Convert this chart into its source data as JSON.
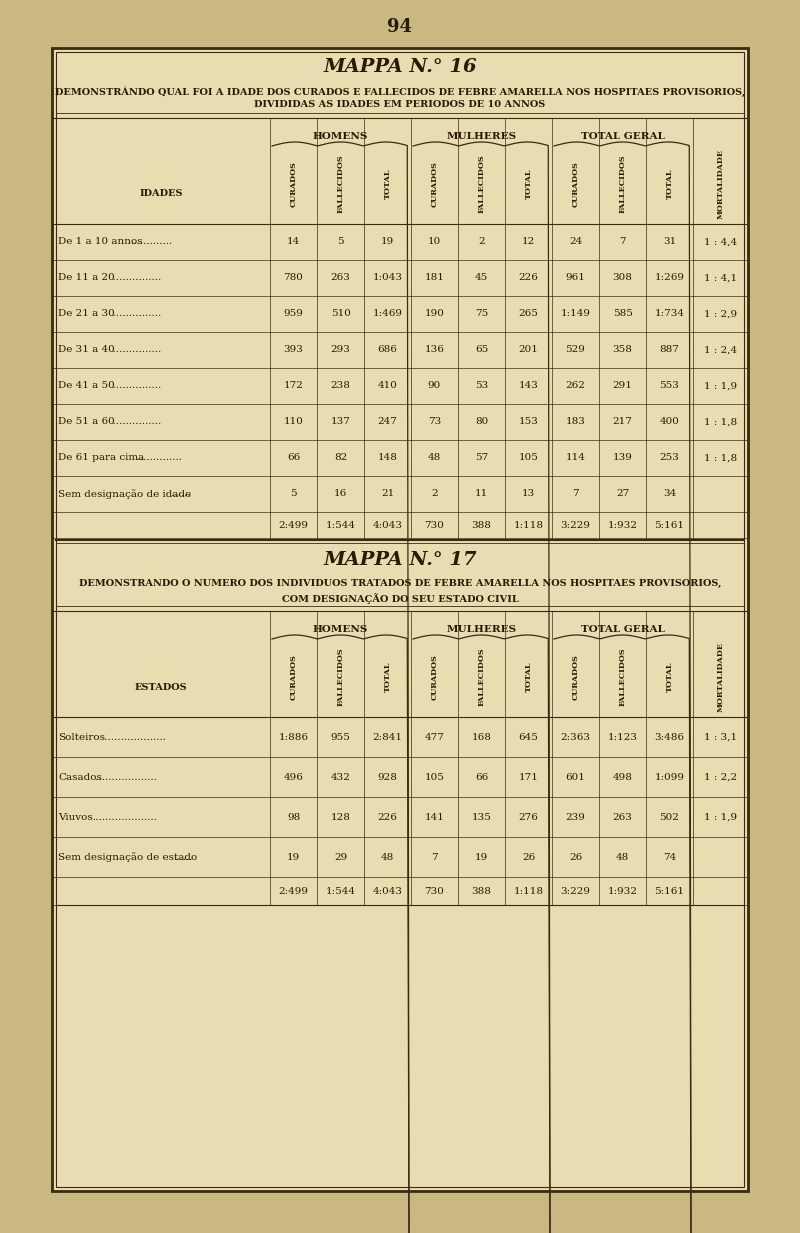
{
  "page_number": "94",
  "bg_color": "#c8b882",
  "paper_color": "#e8ddb0",
  "border_color": "#3a2a10",
  "text_color": "#2a1a00",
  "mappa16_title": "MAPPA N.° 16",
  "mappa16_subtitle1": "DEMONSTRÁNDO QUAL FOI A IDADE DOS CURADOS E FALLECIDOS DE FEBRE AMARELLA NOS HOSPITAES PROVISORIOS,",
  "mappa16_subtitle2": "DIVIDIDAS AS IDADES EM PERIODOS DE 10 ANNOS",
  "mappa16_row_label": "IDADES",
  "mappa16_rows": [
    {
      "label": "De 1 a 10 annos",
      "dots": ".............",
      "h_cur": "14",
      "h_fal": "5",
      "h_tot": "19",
      "m_cur": "10",
      "m_fal": "2",
      "m_tot": "12",
      "t_cur": "24",
      "t_fal": "7",
      "t_tot": "31",
      "mort": "1 : 4,4"
    },
    {
      "label": "De 11 a 20",
      "dots": "  ...............",
      "h_cur": "780",
      "h_fal": "263",
      "h_tot": "1:043",
      "m_cur": "181",
      "m_fal": "45",
      "m_tot": "226",
      "t_cur": "961",
      "t_fal": "308",
      "t_tot": "1:269",
      "mort": "1 : 4,1"
    },
    {
      "label": "De 21 a 30",
      "dots": "  ...............",
      "h_cur": "959",
      "h_fal": "510",
      "h_tot": "1:469",
      "m_cur": "190",
      "m_fal": "75",
      "m_tot": "265",
      "t_cur": "1:149",
      "t_fal": "585",
      "t_tot": "1:734",
      "mort": "1 : 2,9"
    },
    {
      "label": "De 31 a 40",
      "dots": "  ...............",
      "h_cur": "393",
      "h_fal": "293",
      "h_tot": "686",
      "m_cur": "136",
      "m_fal": "65",
      "m_tot": "201",
      "t_cur": "529",
      "t_fal": "358",
      "t_tot": "887",
      "mort": "1 : 2,4"
    },
    {
      "label": "De 41 a 50",
      "dots": "  ...............",
      "h_cur": "172",
      "h_fal": "238",
      "h_tot": "410",
      "m_cur": "90",
      "m_fal": "53",
      "m_tot": "143",
      "t_cur": "262",
      "t_fal": "291",
      "t_tot": "553",
      "mort": "1 : 1,9"
    },
    {
      "label": "De 51 a 60",
      "dots": "  ...............",
      "h_cur": "110",
      "h_fal": "137",
      "h_tot": "247",
      "m_cur": "73",
      "m_fal": "80",
      "m_tot": "153",
      "t_cur": "183",
      "t_fal": "217",
      "t_tot": "400",
      "mort": "1 : 1,8"
    },
    {
      "label": "De 61 para cima",
      "dots": "  ..............",
      "h_cur": "66",
      "h_fal": "82",
      "h_tot": "148",
      "m_cur": "48",
      "m_fal": "57",
      "m_tot": "105",
      "t_cur": "114",
      "t_fal": "139",
      "t_tot": "253",
      "mort": "1 : 1,8"
    },
    {
      "label": "Sem designação de idade",
      "dots": " ......",
      "h_cur": "5",
      "h_fal": "16",
      "h_tot": "21",
      "m_cur": "2",
      "m_fal": "11",
      "m_tot": "13",
      "t_cur": "7",
      "t_fal": "27",
      "t_tot": "34",
      "mort": ""
    },
    {
      "label": "",
      "dots": "",
      "h_cur": "2:499",
      "h_fal": "1:544",
      "h_tot": "4:043",
      "m_cur": "730",
      "m_fal": "388",
      "m_tot": "1:118",
      "t_cur": "3:229",
      "t_fal": "1:932",
      "t_tot": "5:161",
      "mort": ""
    }
  ],
  "mappa17_title": "MAPPA N.° 17",
  "mappa17_subtitle1": "DEMONSTRANDO O NUMERO DOS INDIVIDUOS TRATADOS DE FEBRE AMARELLA NOS HOSPITAES PROVISORIOS,",
  "mappa17_subtitle2": "COM DESIGNAÇÃO DO SEU ESTADO CIVIL",
  "mappa17_row_label": "ESTADOS",
  "mappa17_rows": [
    {
      "label": "Solteiros",
      "dots": " ...................",
      "h_cur": "1:886",
      "h_fal": "955",
      "h_tot": "2:841",
      "m_cur": "477",
      "m_fal": "168",
      "m_tot": "645",
      "t_cur": "2:363",
      "t_fal": "1:123",
      "t_tot": "3:486",
      "mort": "1 : 3,1"
    },
    {
      "label": "Casados",
      "dots": " ...................",
      "h_cur": "496",
      "h_fal": "432",
      "h_tot": "928",
      "m_cur": "105",
      "m_fal": "66",
      "m_tot": "171",
      "t_cur": "601",
      "t_fal": "498",
      "t_tot": "1:099",
      "mort": "1 : 2,2"
    },
    {
      "label": "Viuvos.",
      "dots": " ...................",
      "h_cur": "98",
      "h_fal": "128",
      "h_tot": "226",
      "m_cur": "141",
      "m_fal": "135",
      "m_tot": "276",
      "t_cur": "239",
      "t_fal": "263",
      "t_tot": "502",
      "mort": "1 : 1,9"
    },
    {
      "label": "Sem designação de estado",
      "dots": "......",
      "h_cur": "19",
      "h_fal": "29",
      "h_tot": "48",
      "m_cur": "7",
      "m_fal": "19",
      "m_tot": "26",
      "t_cur": "26",
      "t_fal": "48",
      "t_tot": "74",
      "mort": ""
    },
    {
      "label": "",
      "dots": "",
      "h_cur": "2:499",
      "h_fal": "1:544",
      "h_tot": "4:043",
      "m_cur": "730",
      "m_fal": "388",
      "m_tot": "1:118",
      "t_cur": "3:229",
      "t_fal": "1:932",
      "t_tot": "5:161",
      "mort": ""
    }
  ],
  "col_names": [
    "CURADOS",
    "FALLECIDOS",
    "TOTAL",
    "CURADOS",
    "FALLECIDOS",
    "TOTAL",
    "CURADOS",
    "FALLECIDOS",
    "TOTAL",
    "MORTALIDADE"
  ],
  "group_names": [
    "HOMENS",
    "MULHERES",
    "TOTAL GERAL"
  ]
}
